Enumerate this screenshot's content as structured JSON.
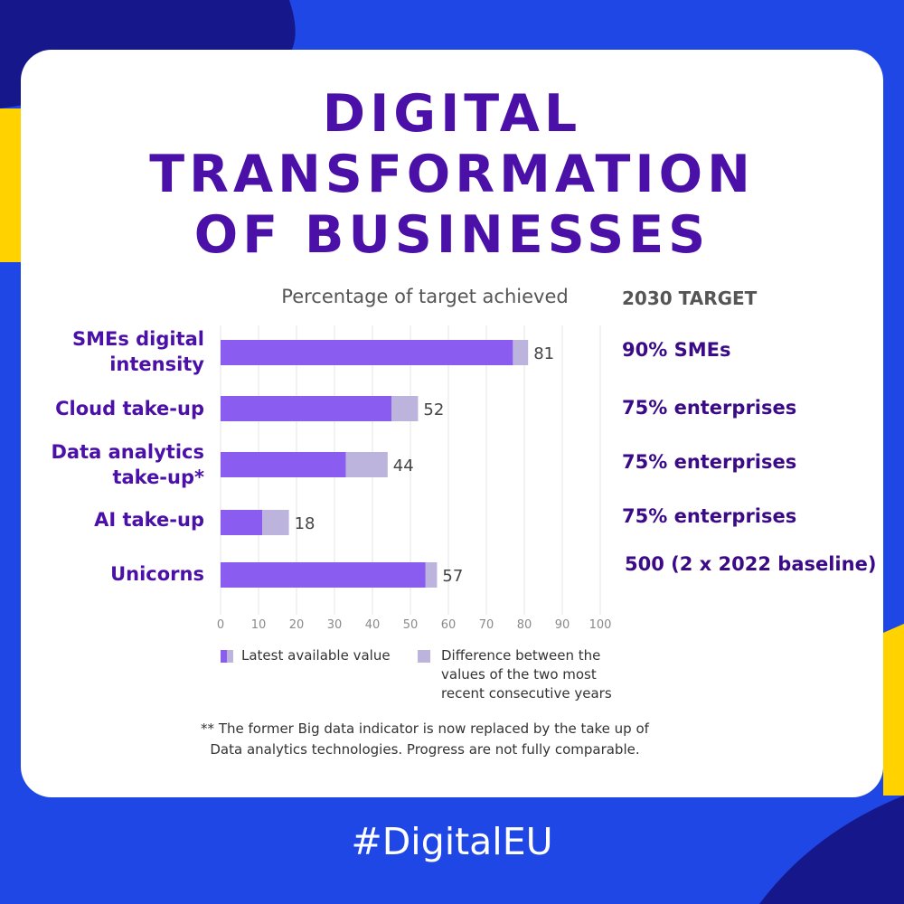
{
  "title_lines": [
    "DIGITAL",
    "TRANSFORMATION",
    "OF BUSINESSES"
  ],
  "subtitle": "Percentage of target achieved",
  "target_header": "2030 TARGET",
  "hashtag": "#DigitalEU",
  "footnote_lines": [
    "** The former Big data indicator is now replaced by the take up of",
    "Data analytics technologies. Progress are not fully comparable."
  ],
  "legend": {
    "latest": "Latest available value",
    "difference_lines": [
      "Difference between the",
      "values of the two most",
      "recent consecutive years"
    ]
  },
  "targets": [
    "90% SMEs",
    "75% enterprises",
    "75% enterprises",
    "75% enterprises",
    "500 (2 x 2022 baseline)"
  ],
  "colors": {
    "title": "#4b10a8",
    "latest_bar": "#8b5cf0",
    "difference_bar": "#bdb4de",
    "background_blue": "#1f47e6",
    "accent_yellow": "#ffd200",
    "dark_navy": "#15178a"
  },
  "chart_data": {
    "type": "bar",
    "orientation": "horizontal",
    "stacked": true,
    "categories": [
      [
        "SMEs digital",
        "intensity"
      ],
      [
        "Cloud take-up"
      ],
      [
        "Data analytics",
        "take-up*"
      ],
      [
        "AI take-up"
      ],
      [
        "Unicorns"
      ]
    ],
    "series": [
      {
        "name": "Latest available value",
        "values": [
          77,
          45,
          33,
          11,
          54
        ]
      },
      {
        "name": "Difference between the values of the two most recent consecutive years",
        "values": [
          4,
          7,
          11,
          7,
          3
        ]
      }
    ],
    "totals": [
      81,
      52,
      44,
      18,
      57
    ],
    "xticks": [
      0,
      10,
      20,
      30,
      40,
      50,
      60,
      70,
      80,
      90,
      100
    ],
    "xlim": [
      0,
      100
    ],
    "grid": true,
    "legend_position": "bottom"
  }
}
